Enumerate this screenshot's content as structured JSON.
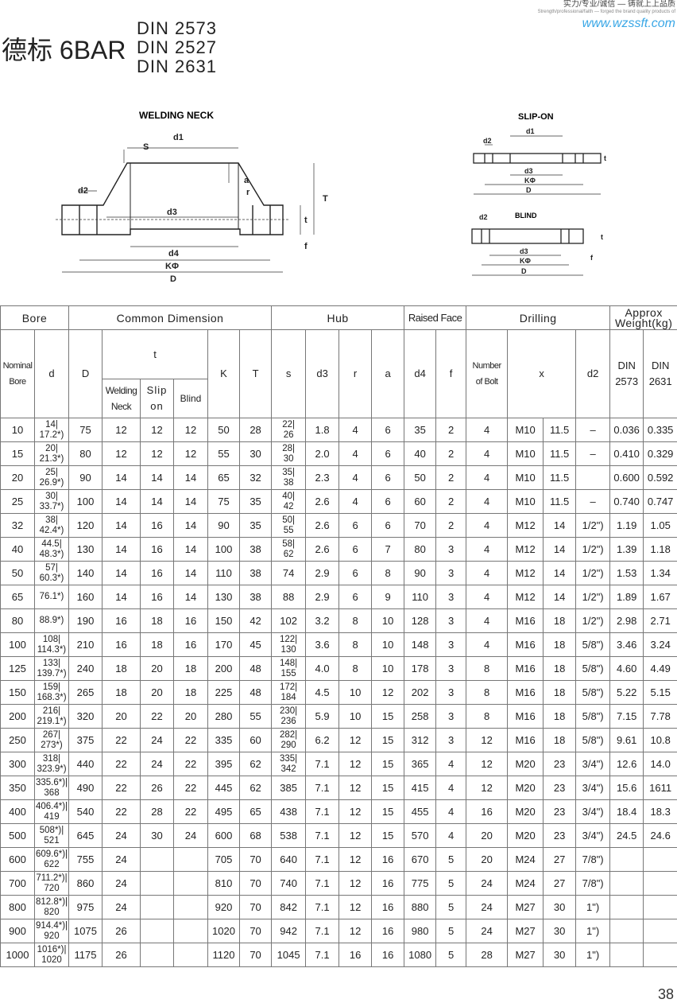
{
  "header": {
    "title": "德标 6BAR",
    "standards": [
      "DIN 2573",
      "DIN 2527",
      "DIN 2631"
    ],
    "slogan": "实力/专业/诚信 — 铸就上上品质",
    "slogan_en": "Strength/professional/faith — forged the brand quality products of",
    "website": "www.wzssft.com",
    "website_color": "#3aa7e6"
  },
  "drawings": {
    "welding_neck": {
      "title": "WELDING NECK",
      "labels": [
        "d1",
        "S",
        "d2",
        "a",
        "r",
        "T",
        "d3",
        "t",
        "f",
        "d4",
        "KΦ",
        "D"
      ]
    },
    "slip_on": {
      "title": "SLIP-ON",
      "labels": [
        "d1",
        "d2",
        "t",
        "d3",
        "KΦ",
        "D"
      ]
    },
    "blind": {
      "title": "BLIND",
      "labels": [
        "d2",
        "t",
        "f",
        "d3",
        "KΦ",
        "D"
      ]
    }
  },
  "table": {
    "groups": [
      "Bore",
      "Common Dimension",
      "Hub",
      "Raised Face",
      "Drilling",
      "Approx Weight(kg)"
    ],
    "columns": {
      "nominal": "Nominal Bore",
      "d": "d",
      "D": "D",
      "t": "t",
      "t_sub": [
        "Welding Neck",
        "Slip on",
        "Blind"
      ],
      "K": "K",
      "T": "T",
      "s": "s",
      "d3": "d3",
      "r": "r",
      "a": "a",
      "d4": "d4",
      "f": "f",
      "bolts": "Number of Bolt",
      "x": "x",
      "d2": "d2",
      "w1": "DIN 2573",
      "w2": "DIN 2631"
    },
    "rows": [
      [
        "10",
        "14|17.2*)",
        "75",
        "12",
        "12",
        "12",
        "50",
        "28",
        "22|26",
        "1.8",
        "4",
        "6",
        "35",
        "2",
        "4",
        "M10",
        "11.5",
        "–",
        "0.036",
        "0.335"
      ],
      [
        "15",
        "20|21.3*)",
        "80",
        "12",
        "12",
        "12",
        "55",
        "30",
        "28|30",
        "2.0",
        "4",
        "6",
        "40",
        "2",
        "4",
        "M10",
        "11.5",
        "–",
        "0.410",
        "0.329"
      ],
      [
        "20",
        "25|26.9*)",
        "90",
        "14",
        "14",
        "14",
        "65",
        "32",
        "35|38",
        "2.3",
        "4",
        "6",
        "50",
        "2",
        "4",
        "M10",
        "11.5",
        "",
        "0.600",
        "0.592"
      ],
      [
        "25",
        "30|33.7*)",
        "100",
        "14",
        "14",
        "14",
        "75",
        "35",
        "40|42",
        "2.6",
        "4",
        "6",
        "60",
        "2",
        "4",
        "M10",
        "11.5",
        "–",
        "0.740",
        "0.747"
      ],
      [
        "32",
        "38|42.4*)",
        "120",
        "14",
        "16",
        "14",
        "90",
        "35",
        "50|55",
        "2.6",
        "6",
        "6",
        "70",
        "2",
        "4",
        "M12",
        "14",
        "1/2\")",
        "1.19",
        "1.05"
      ],
      [
        "40",
        "44.5|48.3*)",
        "130",
        "14",
        "16",
        "14",
        "100",
        "38",
        "58|62",
        "2.6",
        "6",
        "7",
        "80",
        "3",
        "4",
        "M12",
        "14",
        "1/2\")",
        "1.39",
        "1.18"
      ],
      [
        "50",
        "57|60.3*)",
        "140",
        "14",
        "16",
        "14",
        "110",
        "38",
        "74",
        "2.9",
        "6",
        "8",
        "90",
        "3",
        "4",
        "M12",
        "14",
        "1/2\")",
        "1.53",
        "1.34"
      ],
      [
        "65",
        "76.1*)",
        "160",
        "14",
        "16",
        "14",
        "130",
        "38",
        "88",
        "2.9",
        "6",
        "9",
        "110",
        "3",
        "4",
        "M12",
        "14",
        "1/2\")",
        "1.89",
        "1.67"
      ],
      [
        "80",
        "88.9*)",
        "190",
        "16",
        "18",
        "16",
        "150",
        "42",
        "102",
        "3.2",
        "8",
        "10",
        "128",
        "3",
        "4",
        "M16",
        "18",
        "1/2\")",
        "2.98",
        "2.71"
      ],
      [
        "100",
        "108|114.3*)",
        "210",
        "16",
        "18",
        "16",
        "170",
        "45",
        "122|130",
        "3.6",
        "8",
        "10",
        "148",
        "3",
        "4",
        "M16",
        "18",
        "5/8\")",
        "3.46",
        "3.24"
      ],
      [
        "125",
        "133|139.7*)",
        "240",
        "18",
        "20",
        "18",
        "200",
        "48",
        "148|155",
        "4.0",
        "8",
        "10",
        "178",
        "3",
        "8",
        "M16",
        "18",
        "5/8\")",
        "4.60",
        "4.49"
      ],
      [
        "150",
        "159|168.3*)",
        "265",
        "18",
        "20",
        "18",
        "225",
        "48",
        "172|184",
        "4.5",
        "10",
        "12",
        "202",
        "3",
        "8",
        "M16",
        "18",
        "5/8\")",
        "5.22",
        "5.15"
      ],
      [
        "200",
        "216|219.1*)",
        "320",
        "20",
        "22",
        "20",
        "280",
        "55",
        "230|236",
        "5.9",
        "10",
        "15",
        "258",
        "3",
        "8",
        "M16",
        "18",
        "5/8\")",
        "7.15",
        "7.78"
      ],
      [
        "250",
        "267|273*)",
        "375",
        "22",
        "24",
        "22",
        "335",
        "60",
        "282|290",
        "6.2",
        "12",
        "15",
        "312",
        "3",
        "12",
        "M16",
        "18",
        "5/8\")",
        "9.61",
        "10.8"
      ],
      [
        "300",
        "318|323.9*)",
        "440",
        "22",
        "24",
        "22",
        "395",
        "62",
        "335|342",
        "7.1",
        "12",
        "15",
        "365",
        "4",
        "12",
        "M20",
        "23",
        "3/4\")",
        "12.6",
        "14.0"
      ],
      [
        "350",
        "335.6*)|368",
        "490",
        "22",
        "26",
        "22",
        "445",
        "62",
        "385",
        "7.1",
        "12",
        "15",
        "415",
        "4",
        "12",
        "M20",
        "23",
        "3/4\")",
        "15.6",
        "1611"
      ],
      [
        "400",
        "406.4*)|419",
        "540",
        "22",
        "28",
        "22",
        "495",
        "65",
        "438",
        "7.1",
        "12",
        "15",
        "455",
        "4",
        "16",
        "M20",
        "23",
        "3/4\")",
        "18.4",
        "18.3"
      ],
      [
        "500",
        "508*)|521",
        "645",
        "24",
        "30",
        "24",
        "600",
        "68",
        "538",
        "7.1",
        "12",
        "15",
        "570",
        "4",
        "20",
        "M20",
        "23",
        "3/4\")",
        "24.5",
        "24.6"
      ],
      [
        "600",
        "609.6*)|622",
        "755",
        "24",
        "",
        "",
        "705",
        "70",
        "640",
        "7.1",
        "12",
        "16",
        "670",
        "5",
        "20",
        "M24",
        "27",
        "7/8\")",
        "",
        ""
      ],
      [
        "700",
        "711.2*)|720",
        "860",
        "24",
        "",
        "",
        "810",
        "70",
        "740",
        "7.1",
        "12",
        "16",
        "775",
        "5",
        "24",
        "M24",
        "27",
        "7/8\")",
        "",
        ""
      ],
      [
        "800",
        "812.8*)|820",
        "975",
        "24",
        "",
        "",
        "920",
        "70",
        "842",
        "7.1",
        "12",
        "16",
        "880",
        "5",
        "24",
        "M27",
        "30",
        "1\")",
        "",
        ""
      ],
      [
        "900",
        "914.4*)|920",
        "1075",
        "26",
        "",
        "",
        "1020",
        "70",
        "942",
        "7.1",
        "12",
        "16",
        "980",
        "5",
        "24",
        "M27",
        "30",
        "1\")",
        "",
        ""
      ],
      [
        "1000",
        "1016*)|1020",
        "1175",
        "26",
        "",
        "",
        "1120",
        "70",
        "1045",
        "7.1",
        "16",
        "16",
        "1080",
        "5",
        "28",
        "M27",
        "30",
        "1\")",
        "",
        ""
      ]
    ]
  },
  "page_number": "38"
}
